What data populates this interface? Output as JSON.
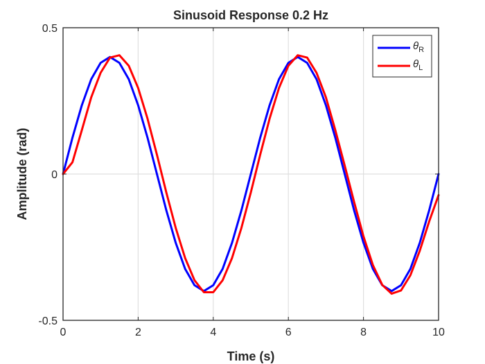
{
  "chart_data": {
    "type": "line",
    "title": "Sinusoid Response 0.2 Hz",
    "xlabel": "Time (s)",
    "ylabel": "Amplitude (rad)",
    "xlim": [
      0,
      10
    ],
    "ylim": [
      -0.5,
      0.5
    ],
    "xticks": [
      0,
      2,
      4,
      6,
      8,
      10
    ],
    "yticks": [
      -0.5,
      0,
      0.5
    ],
    "grid": true,
    "legend_position": "top-right",
    "series": [
      {
        "name": "θ_R",
        "legend_symbol": "θ",
        "legend_subscript": "R",
        "color": "#0000ff",
        "x": [
          0,
          0.25,
          0.5,
          0.75,
          1,
          1.25,
          1.5,
          1.75,
          2,
          2.25,
          2.5,
          2.75,
          3,
          3.25,
          3.5,
          3.75,
          4,
          4.25,
          4.5,
          4.75,
          5,
          5.25,
          5.5,
          5.75,
          6,
          6.25,
          6.5,
          6.75,
          7,
          7.25,
          7.5,
          7.75,
          8,
          8.25,
          8.5,
          8.75,
          9,
          9.25,
          9.5,
          9.75,
          10
        ],
        "y": [
          0,
          0.124,
          0.235,
          0.324,
          0.38,
          0.4,
          0.38,
          0.324,
          0.235,
          0.124,
          0,
          -0.124,
          -0.235,
          -0.324,
          -0.38,
          -0.4,
          -0.38,
          -0.324,
          -0.235,
          -0.124,
          0,
          0.124,
          0.235,
          0.324,
          0.38,
          0.4,
          0.38,
          0.324,
          0.235,
          0.124,
          0,
          -0.124,
          -0.235,
          -0.324,
          -0.38,
          -0.4,
          -0.38,
          -0.324,
          -0.235,
          -0.124,
          0
        ]
      },
      {
        "name": "θ_L",
        "legend_symbol": "θ",
        "legend_subscript": "L",
        "color": "#ff0000",
        "x": [
          0,
          0.25,
          0.5,
          0.75,
          1,
          1.25,
          1.5,
          1.75,
          2,
          2.25,
          2.5,
          2.75,
          3,
          3.25,
          3.5,
          3.75,
          4,
          4.25,
          4.5,
          4.75,
          5,
          5.25,
          5.5,
          5.75,
          6,
          6.25,
          6.5,
          6.75,
          7,
          7.25,
          7.5,
          7.75,
          8,
          8.25,
          8.5,
          8.75,
          9,
          9.25,
          9.5,
          9.75,
          10
        ],
        "y": [
          0,
          0.04,
          0.15,
          0.262,
          0.346,
          0.398,
          0.406,
          0.37,
          0.294,
          0.189,
          0.066,
          -0.063,
          -0.184,
          -0.287,
          -0.363,
          -0.404,
          -0.404,
          -0.363,
          -0.287,
          -0.184,
          -0.063,
          0.066,
          0.189,
          0.294,
          0.37,
          0.406,
          0.398,
          0.346,
          0.262,
          0.15,
          0.029,
          -0.095,
          -0.213,
          -0.311,
          -0.379,
          -0.409,
          -0.398,
          -0.346,
          -0.262,
          -0.162,
          -0.072
        ]
      }
    ]
  }
}
